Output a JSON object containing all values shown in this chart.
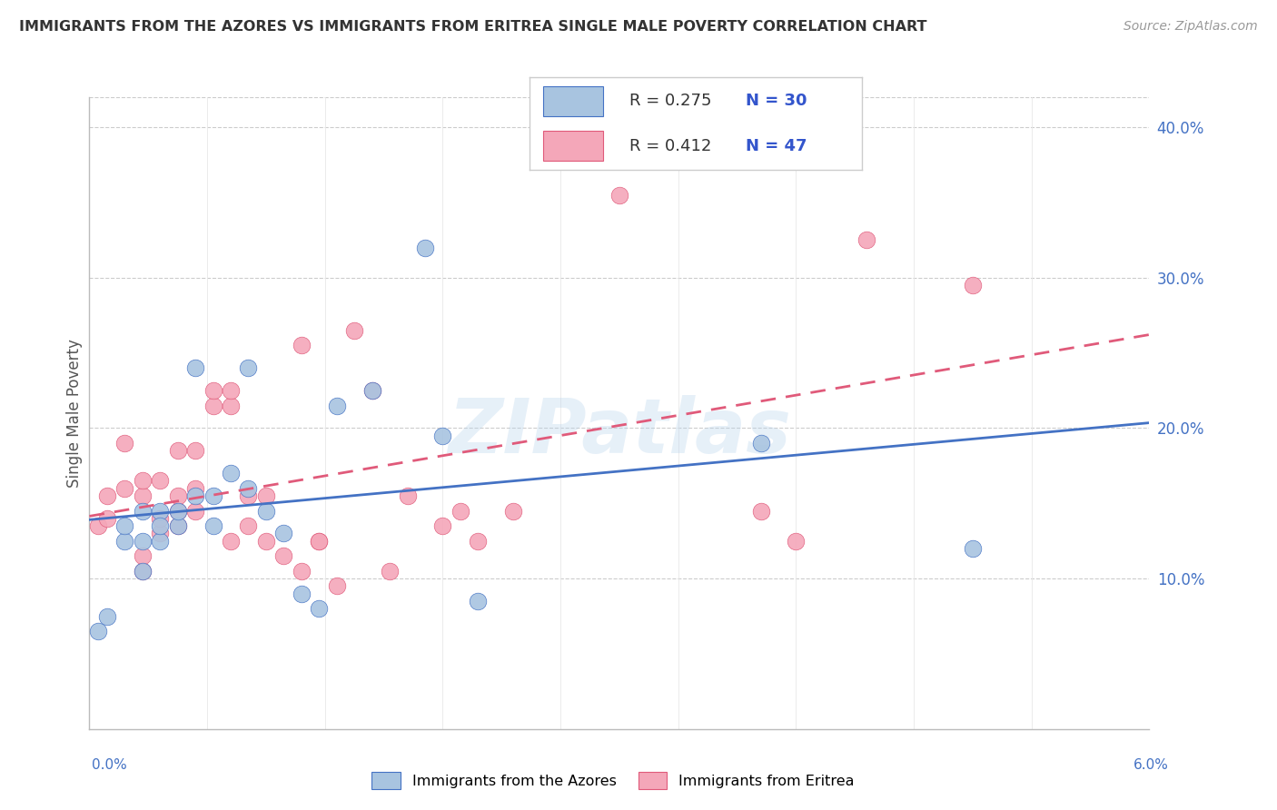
{
  "title": "IMMIGRANTS FROM THE AZORES VS IMMIGRANTS FROM ERITREA SINGLE MALE POVERTY CORRELATION CHART",
  "source": "Source: ZipAtlas.com",
  "ylabel": "Single Male Poverty",
  "watermark": "ZIPatlas",
  "legend_label1": "Immigrants from the Azores",
  "legend_label2": "Immigrants from Eritrea",
  "r1": 0.275,
  "n1": 30,
  "r2": 0.412,
  "n2": 47,
  "color1": "#a8c4e0",
  "color2": "#f4a7b9",
  "line_color1": "#4472c4",
  "line_color2": "#e05a7a",
  "text_blue": "#3355cc",
  "xmin": 0.0,
  "xmax": 0.06,
  "ymin": 0.0,
  "ymax": 0.42,
  "yticks": [
    0.1,
    0.2,
    0.3,
    0.4
  ],
  "ytick_labels": [
    "10.0%",
    "20.0%",
    "30.0%",
    "40.0%"
  ],
  "azores_x": [
    0.0005,
    0.001,
    0.002,
    0.002,
    0.003,
    0.003,
    0.003,
    0.004,
    0.004,
    0.004,
    0.005,
    0.005,
    0.006,
    0.006,
    0.007,
    0.007,
    0.008,
    0.009,
    0.009,
    0.01,
    0.011,
    0.012,
    0.013,
    0.014,
    0.016,
    0.019,
    0.02,
    0.022,
    0.038,
    0.05
  ],
  "azores_y": [
    0.065,
    0.075,
    0.125,
    0.135,
    0.105,
    0.125,
    0.145,
    0.125,
    0.145,
    0.135,
    0.135,
    0.145,
    0.24,
    0.155,
    0.155,
    0.135,
    0.17,
    0.16,
    0.24,
    0.145,
    0.13,
    0.09,
    0.08,
    0.215,
    0.225,
    0.32,
    0.195,
    0.085,
    0.19,
    0.12
  ],
  "eritrea_x": [
    0.0005,
    0.001,
    0.001,
    0.002,
    0.002,
    0.003,
    0.003,
    0.003,
    0.003,
    0.004,
    0.004,
    0.004,
    0.005,
    0.005,
    0.005,
    0.005,
    0.006,
    0.006,
    0.006,
    0.007,
    0.007,
    0.008,
    0.008,
    0.008,
    0.009,
    0.009,
    0.01,
    0.01,
    0.011,
    0.012,
    0.012,
    0.013,
    0.013,
    0.014,
    0.015,
    0.016,
    0.017,
    0.018,
    0.02,
    0.021,
    0.022,
    0.024,
    0.03,
    0.038,
    0.04,
    0.044,
    0.05
  ],
  "eritrea_y": [
    0.135,
    0.14,
    0.155,
    0.16,
    0.19,
    0.105,
    0.115,
    0.155,
    0.165,
    0.13,
    0.14,
    0.165,
    0.135,
    0.145,
    0.155,
    0.185,
    0.145,
    0.16,
    0.185,
    0.215,
    0.225,
    0.215,
    0.225,
    0.125,
    0.135,
    0.155,
    0.125,
    0.155,
    0.115,
    0.255,
    0.105,
    0.125,
    0.125,
    0.095,
    0.265,
    0.225,
    0.105,
    0.155,
    0.135,
    0.145,
    0.125,
    0.145,
    0.355,
    0.145,
    0.125,
    0.325,
    0.295
  ]
}
